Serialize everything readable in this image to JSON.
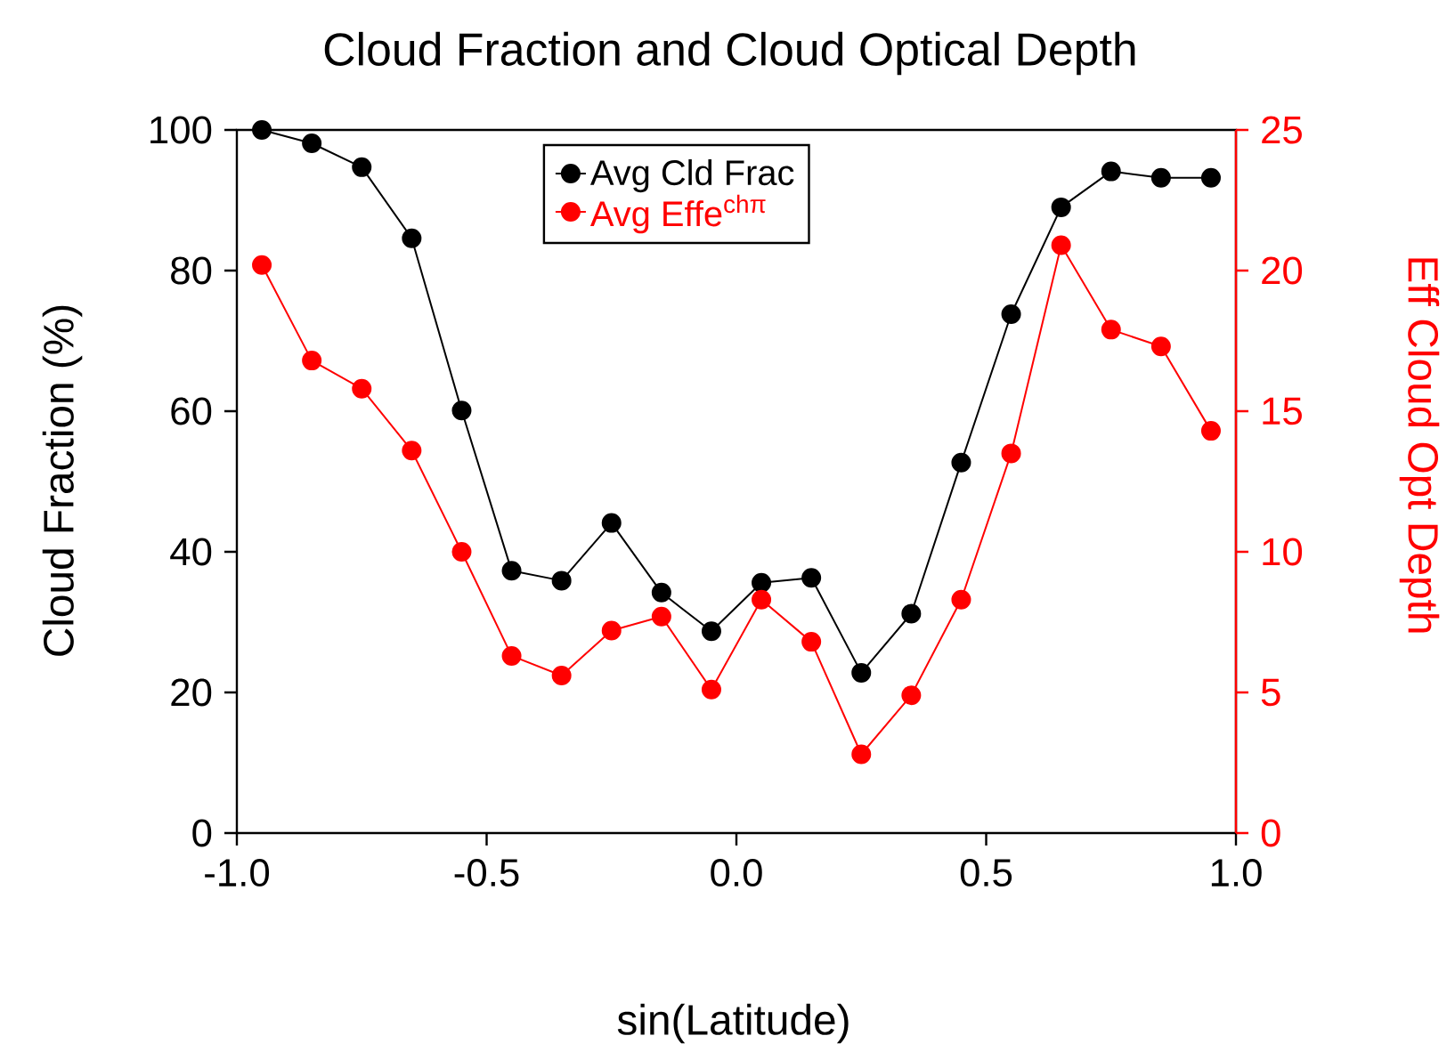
{
  "chart_data": {
    "type": "line",
    "title": "Cloud Fraction and Cloud Optical Depth",
    "xlabel": "sin(Latitude)",
    "ylabel": "Cloud Fraction (%)",
    "y2label": "Eff Cloud Opt Depth",
    "x": [
      -0.95,
      -0.85,
      -0.75,
      -0.65,
      -0.55,
      -0.45,
      -0.35,
      -0.25,
      -0.15,
      -0.05,
      0.05,
      0.15,
      0.25,
      0.35,
      0.45,
      0.55,
      0.65,
      0.75,
      0.85,
      0.95
    ],
    "series": [
      {
        "name": "Avg Cld Frac",
        "color": "#000000",
        "values": [
          100,
          98.1,
          94.7,
          84.6,
          60.1,
          37.3,
          35.9,
          44.1,
          34.2,
          28.7,
          35.6,
          36.3,
          22.8,
          31.2,
          52.7,
          73.8,
          89.0,
          94.1,
          93.2,
          93.2
        ]
      },
      {
        "name": "Avg Effe$^{chπ}$",
        "color": "#ff0000",
        "axis": "y2",
        "values": [
          20.2,
          16.8,
          15.8,
          13.6,
          10.0,
          6.3,
          5.6,
          7.2,
          7.7,
          5.1,
          8.3,
          6.8,
          2.8,
          4.9,
          8.3,
          13.5,
          20.9,
          17.9,
          17.3,
          14.3
        ]
      }
    ],
    "xlim": [
      -1,
      1
    ],
    "xticks": [
      {
        "value": -1,
        "label": "-1.0"
      },
      {
        "value": -0.5,
        "label": "-0.5"
      },
      {
        "value": 0,
        "label": "0.0"
      },
      {
        "value": 0.5,
        "label": "0.5"
      },
      {
        "value": 1,
        "label": "1.0"
      }
    ],
    "ylim": [
      0,
      100
    ],
    "yticks": [
      0,
      20,
      40,
      60,
      80,
      100
    ],
    "y2lim": [
      0,
      25
    ],
    "y2ticks": [
      0,
      5,
      10,
      15,
      20,
      25
    ],
    "marker": "circle",
    "line_style": "solid",
    "legend": "top"
  }
}
